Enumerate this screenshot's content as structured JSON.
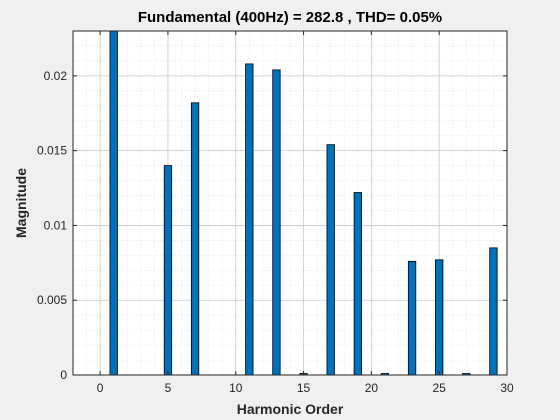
{
  "chart_data": {
    "type": "bar",
    "title": "Fundamental (400Hz) = 282.8 , THD= 0.05%",
    "xlabel": "Harmonic Order",
    "ylabel": "Magnitude",
    "xlim": [
      -2,
      30
    ],
    "ylim": [
      0,
      0.023
    ],
    "xticks": [
      0,
      5,
      10,
      15,
      20,
      25,
      30
    ],
    "yticks": [
      0,
      0.005,
      0.01,
      0.015,
      0.02
    ],
    "xtick_labels": [
      "0",
      "5",
      "10",
      "15",
      "20",
      "25",
      "30"
    ],
    "ytick_labels": [
      "0",
      "0.005",
      "0.01",
      "0.015",
      "0.02"
    ],
    "grid": true,
    "minor_grid": true,
    "bar_color": "#0072BD",
    "x": [
      1,
      3,
      5,
      7,
      9,
      11,
      13,
      15,
      17,
      19,
      21,
      23,
      25,
      27,
      29
    ],
    "values": [
      0.0231,
      0.0,
      0.014,
      0.0182,
      0.0,
      0.0208,
      0.0204,
      0.0001,
      0.0154,
      0.0122,
      0.0001,
      0.0076,
      0.0077,
      0.0001,
      0.0085
    ]
  }
}
